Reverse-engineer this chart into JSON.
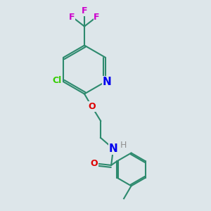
{
  "background_color": "#dde6ea",
  "bond_color": "#2d8a6e",
  "N_color": "#0000ee",
  "O_color": "#dd0000",
  "Cl_color": "#33cc00",
  "F_color": "#cc00cc",
  "H_color": "#909090",
  "bond_width": 1.5,
  "doff_ring": 0.09,
  "doff_benz": 0.065,
  "figsize": [
    3.0,
    3.0
  ],
  "dpi": 100,
  "xlim": [
    0,
    10
  ],
  "ylim": [
    0,
    10
  ]
}
